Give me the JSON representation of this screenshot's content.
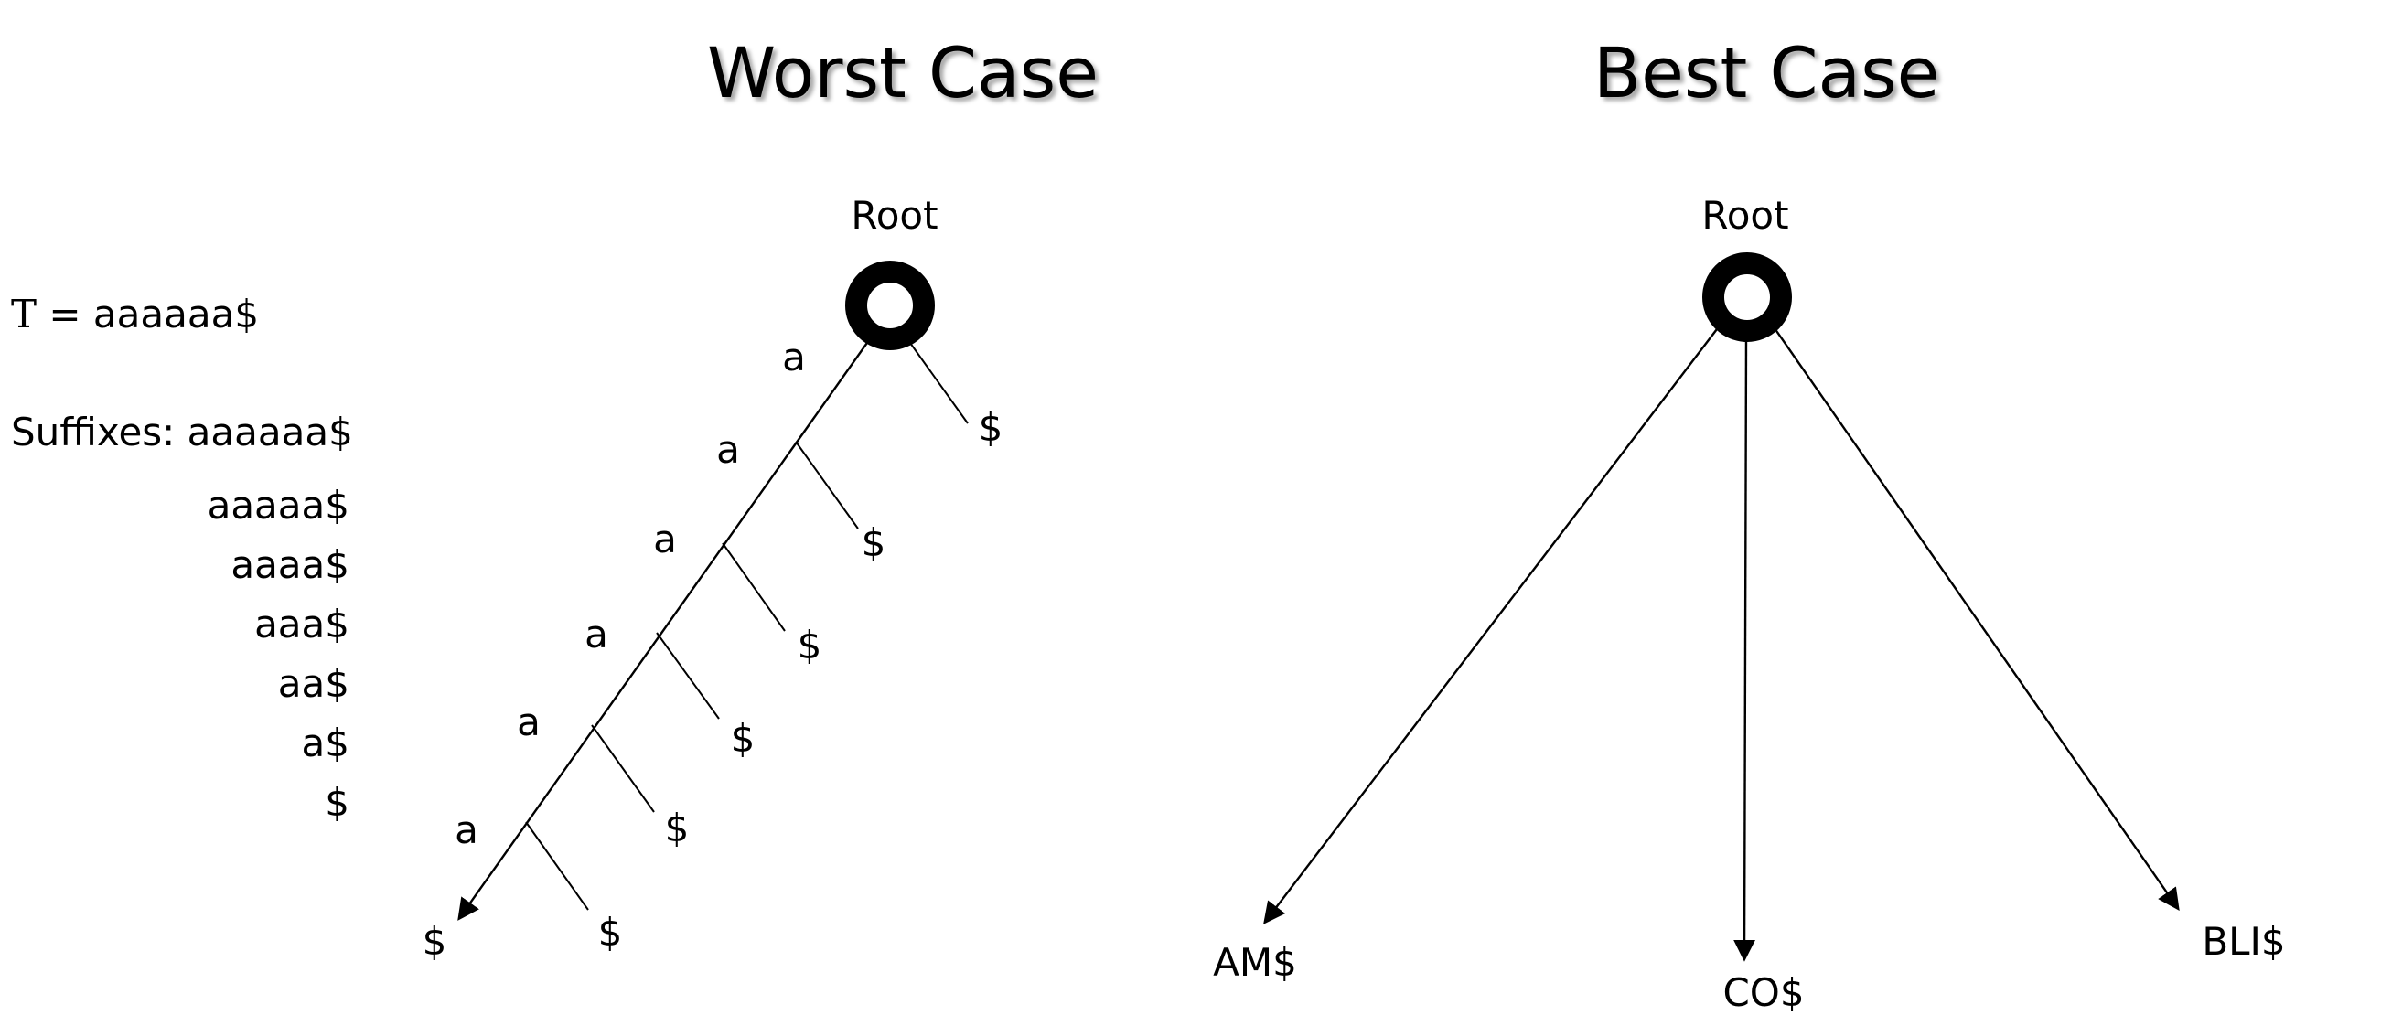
{
  "worst": {
    "title": "Worst Case",
    "root_label": "Root",
    "text_label": "T",
    "text_value": "= aaaaaa$",
    "suffixes_heading": "Suffixes: aaaaaa$",
    "suffixes": [
      "aaaaa$",
      "aaaa$",
      "aaa$",
      "aa$",
      "a$",
      "$"
    ],
    "edge_labels": [
      "a",
      "a",
      "a",
      "a",
      "a",
      "a"
    ],
    "leaf_labels": [
      "$",
      "$",
      "$",
      "$",
      "$",
      "$",
      "$"
    ]
  },
  "best": {
    "title": "Best Case",
    "root_label": "Root",
    "leaves": [
      "AM$",
      "CO$",
      "BLI$"
    ]
  }
}
